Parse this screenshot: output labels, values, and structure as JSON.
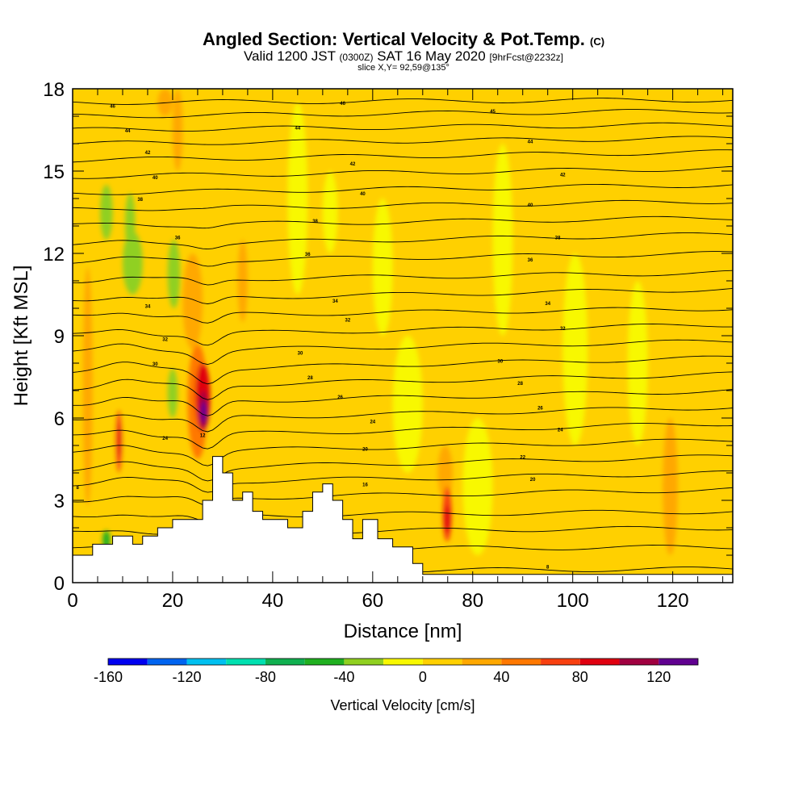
{
  "title": {
    "main": "Angled Section: Vertical Velocity & Pot.Temp.",
    "main_unit": "(C)",
    "valid_prefix": "Valid 1200 JST",
    "valid_utc": "(0300Z)",
    "valid_date": "SAT 16 May 2020",
    "valid_fcst": "[9hrFcst@2232z]",
    "slice": "slice X,Y= 92,59@135°"
  },
  "chart_data": {
    "type": "heatmap",
    "xlabel": "Distance [nm]",
    "ylabel": "Height [Kft MSL]",
    "xlim": [
      0,
      132
    ],
    "ylim": [
      0,
      18
    ],
    "x_ticks": [
      0,
      20,
      40,
      60,
      80,
      100,
      120
    ],
    "y_ticks": [
      0,
      3,
      6,
      9,
      12,
      15,
      18
    ],
    "background_value_cm_s": 0,
    "colorbar": {
      "label": "Vertical Velocity [cm/s]",
      "levels": [
        -160,
        -140,
        -120,
        -100,
        -80,
        -60,
        -40,
        -20,
        0,
        20,
        40,
        60,
        80,
        100,
        120,
        140
      ],
      "colors": [
        "#0000f0",
        "#0064f0",
        "#00c0f0",
        "#00e0b0",
        "#10b050",
        "#20b020",
        "#90d020",
        "#f8f800",
        "#ffd000",
        "#ffa800",
        "#ff7800",
        "#f84010",
        "#e00010",
        "#a00040",
        "#600090"
      ],
      "tick_labels": [
        -160,
        -120,
        -80,
        -40,
        0,
        40,
        80,
        120
      ]
    },
    "terrain_kft": [
      [
        0,
        1.0
      ],
      [
        4,
        1.0
      ],
      [
        4,
        1.4
      ],
      [
        8,
        1.4
      ],
      [
        8,
        1.7
      ],
      [
        12,
        1.7
      ],
      [
        12,
        1.4
      ],
      [
        14,
        1.4
      ],
      [
        14,
        1.7
      ],
      [
        17,
        1.7
      ],
      [
        17,
        2.0
      ],
      [
        20,
        2.0
      ],
      [
        20,
        2.3
      ],
      [
        26,
        2.3
      ],
      [
        26,
        3.0
      ],
      [
        28,
        3.0
      ],
      [
        28,
        4.6
      ],
      [
        30,
        4.6
      ],
      [
        30,
        4.0
      ],
      [
        32,
        4.0
      ],
      [
        32,
        3.0
      ],
      [
        34,
        3.0
      ],
      [
        34,
        3.3
      ],
      [
        36,
        3.3
      ],
      [
        36,
        2.6
      ],
      [
        38,
        2.6
      ],
      [
        38,
        2.3
      ],
      [
        43,
        2.3
      ],
      [
        43,
        2.0
      ],
      [
        46,
        2.0
      ],
      [
        46,
        2.6
      ],
      [
        48,
        2.6
      ],
      [
        48,
        3.3
      ],
      [
        50,
        3.3
      ],
      [
        50,
        3.6
      ],
      [
        52,
        3.6
      ],
      [
        52,
        3.0
      ],
      [
        54,
        3.0
      ],
      [
        54,
        2.3
      ],
      [
        56,
        2.3
      ],
      [
        56,
        1.6
      ],
      [
        58,
        1.6
      ],
      [
        58,
        2.3
      ],
      [
        61,
        2.3
      ],
      [
        61,
        1.6
      ],
      [
        64,
        1.6
      ],
      [
        64,
        1.3
      ],
      [
        68,
        1.3
      ],
      [
        68,
        0.7
      ],
      [
        70,
        0.7
      ],
      [
        70,
        0.3
      ],
      [
        132,
        0.3
      ]
    ],
    "velocity_cells": [
      {
        "x": [
          2,
          4
        ],
        "y": [
          2.8,
          11.5
        ],
        "value": 30
      },
      {
        "x": [
          0,
          2
        ],
        "y": [
          0.6,
          17.5
        ],
        "value": 15
      },
      {
        "x": [
          5,
          11
        ],
        "y": [
          2.5,
          8
        ],
        "value": 10
      },
      {
        "x": [
          8.5,
          10
        ],
        "y": [
          4,
          6.3
        ],
        "value": 70
      },
      {
        "x": [
          9,
          9.8
        ],
        "y": [
          4.6,
          5.8
        ],
        "value": 90
      },
      {
        "x": [
          6,
          7.5
        ],
        "y": [
          1.2,
          1.9
        ],
        "value": -50
      },
      {
        "x": [
          5.5,
          8
        ],
        "y": [
          12.5,
          14.5
        ],
        "value": -40
      },
      {
        "x": [
          10.5,
          12.5
        ],
        "y": [
          12,
          14.2
        ],
        "value": -30
      },
      {
        "x": [
          10,
          14
        ],
        "y": [
          10.5,
          12.8
        ],
        "value": -40
      },
      {
        "x": [
          19,
          21.5
        ],
        "y": [
          10,
          12.5
        ],
        "value": -40
      },
      {
        "x": [
          19,
          21
        ],
        "y": [
          6,
          7.8
        ],
        "value": -40
      },
      {
        "x": [
          17,
          20
        ],
        "y": [
          17,
          18
        ],
        "value": 25
      },
      {
        "x": [
          20,
          22
        ],
        "y": [
          15,
          18
        ],
        "value": 20
      },
      {
        "x": [
          23,
          27
        ],
        "y": [
          4.5,
          8.7
        ],
        "value": 45
      },
      {
        "x": [
          24.5,
          27.5
        ],
        "y": [
          5.5,
          8.0
        ],
        "value": 80
      },
      {
        "x": [
          25.3,
          27
        ],
        "y": [
          5.6,
          7.0
        ],
        "value": 110
      },
      {
        "x": [
          25.6,
          26.8
        ],
        "y": [
          5.8,
          6.6
        ],
        "value": 130
      },
      {
        "x": [
          33,
          35
        ],
        "y": [
          9.5,
          12.5
        ],
        "value": 30
      },
      {
        "x": [
          28.5,
          31
        ],
        "y": [
          12.5,
          17
        ],
        "value": 15
      },
      {
        "x": [
          22,
          26
        ],
        "y": [
          8.5,
          12
        ],
        "value": 20
      },
      {
        "x": [
          34,
          38
        ],
        "y": [
          3,
          9
        ],
        "value": 18
      },
      {
        "x": [
          43,
          47
        ],
        "y": [
          10.5,
          17.5
        ],
        "value": -10
      },
      {
        "x": [
          50,
          53
        ],
        "y": [
          12,
          15
        ],
        "value": -10
      },
      {
        "x": [
          56,
          60
        ],
        "y": [
          4,
          12
        ],
        "value": 18
      },
      {
        "x": [
          60,
          64
        ],
        "y": [
          9,
          14
        ],
        "value": -10
      },
      {
        "x": [
          64,
          70
        ],
        "y": [
          4,
          9
        ],
        "value": -10
      },
      {
        "x": [
          73,
          76
        ],
        "y": [
          3,
          5
        ],
        "value": 30
      },
      {
        "x": [
          74,
          75.8
        ],
        "y": [
          1.5,
          3.5
        ],
        "value": 65
      },
      {
        "x": [
          74.3,
          75.5
        ],
        "y": [
          1.8,
          2.8
        ],
        "value": 80
      },
      {
        "x": [
          78,
          84
        ],
        "y": [
          1,
          6
        ],
        "value": -10
      },
      {
        "x": [
          84,
          88
        ],
        "y": [
          9,
          16
        ],
        "value": -10
      },
      {
        "x": [
          88,
          92
        ],
        "y": [
          1,
          8
        ],
        "value": 18
      },
      {
        "x": [
          93,
          97
        ],
        "y": [
          3,
          7
        ],
        "value": 18
      },
      {
        "x": [
          98,
          103
        ],
        "y": [
          5,
          12
        ],
        "value": -10
      },
      {
        "x": [
          106,
          110
        ],
        "y": [
          2,
          5
        ],
        "value": 18
      },
      {
        "x": [
          111,
          115
        ],
        "y": [
          5,
          11
        ],
        "value": -10
      },
      {
        "x": [
          118,
          121
        ],
        "y": [
          1,
          6
        ],
        "value": 20
      },
      {
        "x": [
          126,
          130
        ],
        "y": [
          1.5,
          4
        ],
        "value": 18
      },
      {
        "x": [
          121,
          125
        ],
        "y": [
          9,
          14
        ],
        "value": 18
      }
    ],
    "theta_isentropes_kft": [
      {
        "left": 0.4,
        "right": 0.5
      },
      {
        "left": 1.2,
        "right": 1.3
      },
      {
        "left": 1.8,
        "right": 2.0
      },
      {
        "left": 2.4,
        "right": 2.6
      },
      {
        "left": 3.0,
        "right": 3.4
      },
      {
        "left": 3.6,
        "right": 4.0
      },
      {
        "left": 4.1,
        "right": 4.6
      },
      {
        "left": 4.7,
        "right": 5.2
      },
      {
        "left": 5.3,
        "right": 5.8
      },
      {
        "left": 5.9,
        "right": 6.4
      },
      {
        "left": 6.5,
        "right": 7.0
      },
      {
        "left": 7.1,
        "right": 7.6
      },
      {
        "left": 7.7,
        "right": 8.2
      },
      {
        "left": 8.4,
        "right": 8.8
      },
      {
        "left": 9.0,
        "right": 9.4
      },
      {
        "left": 9.7,
        "right": 10.0
      },
      {
        "left": 10.3,
        "right": 10.7
      },
      {
        "left": 11.0,
        "right": 11.3
      },
      {
        "left": 11.7,
        "right": 12.0
      },
      {
        "left": 12.3,
        "right": 12.7
      },
      {
        "left": 13.0,
        "right": 13.3
      },
      {
        "left": 13.6,
        "right": 13.9
      },
      {
        "left": 14.2,
        "right": 14.5
      },
      {
        "left": 14.8,
        "right": 15.1
      },
      {
        "left": 15.4,
        "right": 15.7
      },
      {
        "left": 16.0,
        "right": 16.2
      },
      {
        "left": 16.5,
        "right": 16.7
      },
      {
        "left": 17.0,
        "right": 17.2
      },
      {
        "left": 17.5,
        "right": 17.6
      }
    ],
    "contour_labels": [
      {
        "x": 8,
        "y": 17.4,
        "text": "46"
      },
      {
        "x": 11,
        "y": 16.5,
        "text": "44"
      },
      {
        "x": 15,
        "y": 15.7,
        "text": "42"
      },
      {
        "x": 16.5,
        "y": 14.8,
        "text": "40"
      },
      {
        "x": 13.5,
        "y": 14.0,
        "text": "38"
      },
      {
        "x": 21,
        "y": 12.6,
        "text": "36"
      },
      {
        "x": 15,
        "y": 10.1,
        "text": "34"
      },
      {
        "x": 18.5,
        "y": 8.9,
        "text": "32"
      },
      {
        "x": 16.5,
        "y": 8.0,
        "text": "30"
      },
      {
        "x": 18.5,
        "y": 5.3,
        "text": "24"
      },
      {
        "x": 26,
        "y": 5.4,
        "text": "12"
      },
      {
        "x": 1,
        "y": 3.5,
        "text": "8"
      },
      {
        "x": 54,
        "y": 17.5,
        "text": "46"
      },
      {
        "x": 45,
        "y": 16.6,
        "text": "44"
      },
      {
        "x": 56,
        "y": 15.3,
        "text": "42"
      },
      {
        "x": 58,
        "y": 14.2,
        "text": "40"
      },
      {
        "x": 48.5,
        "y": 13.2,
        "text": "38"
      },
      {
        "x": 47,
        "y": 12.0,
        "text": "36"
      },
      {
        "x": 52.5,
        "y": 10.3,
        "text": "34"
      },
      {
        "x": 55,
        "y": 9.6,
        "text": "32"
      },
      {
        "x": 45.5,
        "y": 8.4,
        "text": "30"
      },
      {
        "x": 47.5,
        "y": 7.5,
        "text": "28"
      },
      {
        "x": 53.5,
        "y": 6.8,
        "text": "26"
      },
      {
        "x": 60,
        "y": 5.9,
        "text": "24"
      },
      {
        "x": 58.5,
        "y": 4.9,
        "text": "20"
      },
      {
        "x": 58.5,
        "y": 3.6,
        "text": "16"
      },
      {
        "x": 84,
        "y": 17.2,
        "text": "45"
      },
      {
        "x": 91.5,
        "y": 16.1,
        "text": "44"
      },
      {
        "x": 98,
        "y": 14.9,
        "text": "42"
      },
      {
        "x": 91.5,
        "y": 13.8,
        "text": "40"
      },
      {
        "x": 97,
        "y": 12.6,
        "text": "38"
      },
      {
        "x": 91.5,
        "y": 11.8,
        "text": "36"
      },
      {
        "x": 95,
        "y": 10.2,
        "text": "34"
      },
      {
        "x": 98,
        "y": 9.3,
        "text": "32"
      },
      {
        "x": 85.5,
        "y": 8.1,
        "text": "30"
      },
      {
        "x": 89.5,
        "y": 7.3,
        "text": "28"
      },
      {
        "x": 93.5,
        "y": 6.4,
        "text": "26"
      },
      {
        "x": 97.5,
        "y": 5.6,
        "text": "24"
      },
      {
        "x": 90,
        "y": 4.6,
        "text": "22"
      },
      {
        "x": 92,
        "y": 3.8,
        "text": "20"
      },
      {
        "x": 95,
        "y": 0.6,
        "text": "8"
      }
    ]
  }
}
